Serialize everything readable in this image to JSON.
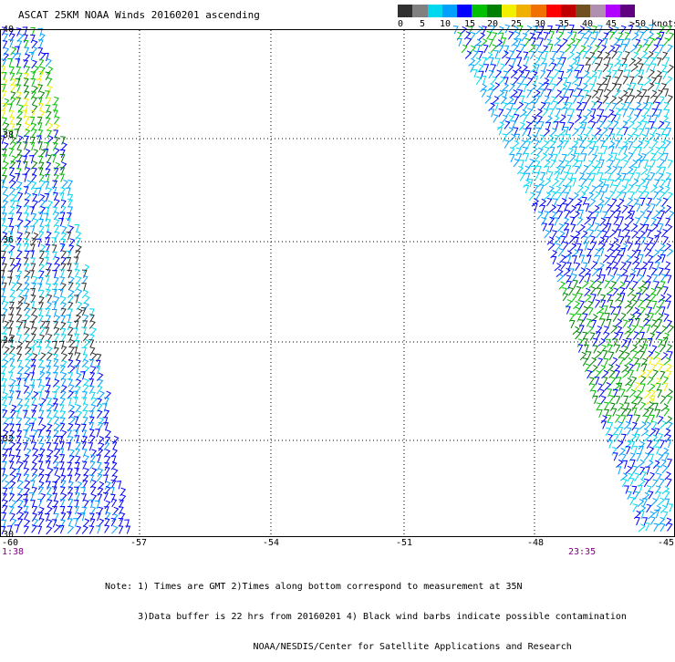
{
  "title": "ASCAT 25KM NOAA Winds 20160201 ascending",
  "legend": {
    "colors": [
      "#303030",
      "#808080",
      "#00d8f0",
      "#00a0ff",
      "#0000ff",
      "#00c000",
      "#008000",
      "#f0f000",
      "#f0b000",
      "#f07000",
      "#ff0000",
      "#c00000",
      "#705020",
      "#b090b0",
      "#b000ff",
      "#600080"
    ],
    "labels": [
      "0",
      "5",
      "10",
      "15",
      "20",
      "25",
      "30",
      "35",
      "40",
      "45",
      ">50 knots"
    ]
  },
  "map": {
    "lon_labels": [
      "-60",
      "-57",
      "-54",
      "-51",
      "-48",
      "-45"
    ],
    "lat_labels": [
      "40",
      "38",
      "36",
      "34",
      "32",
      "30"
    ],
    "time_left": "1:38",
    "time_right": "23:35"
  },
  "notes": {
    "line1": "Note: 1) Times are GMT 2)Times along bottom correspond to measurement at 35N",
    "line2": "      3)Data buffer is 22 hrs from 20160201 4) Black wind barbs indicate possible contamination",
    "line3": "                           NOAA/NESDIS/Center for Satellite Applications and Research"
  }
}
